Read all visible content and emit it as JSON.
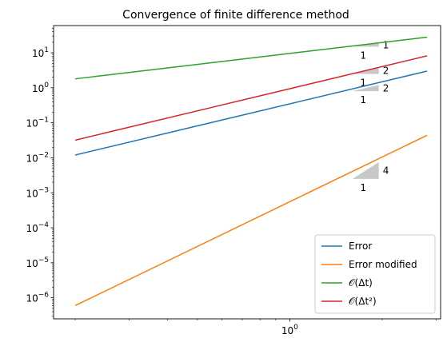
{
  "chart_data": {
    "type": "line",
    "title": "Convergence of finite difference method",
    "xscale": "log",
    "yscale": "log",
    "xlim": [
      0.17,
      3.1
    ],
    "ylim": [
      2.5e-07,
      60
    ],
    "grid": false,
    "legend_position": "lower-right",
    "x_ticks": [
      {
        "value": 1,
        "base": "10",
        "exp": "0"
      }
    ],
    "y_ticks": [
      {
        "value": 1e-06,
        "base": "10",
        "exp": "−6"
      },
      {
        "value": 1e-05,
        "base": "10",
        "exp": "−5"
      },
      {
        "value": 0.0001,
        "base": "10",
        "exp": "−4"
      },
      {
        "value": 0.001,
        "base": "10",
        "exp": "−3"
      },
      {
        "value": 0.01,
        "base": "10",
        "exp": "−2"
      },
      {
        "value": 0.1,
        "base": "10",
        "exp": "−1"
      },
      {
        "value": 1,
        "base": "10",
        "exp": "0"
      },
      {
        "value": 10,
        "base": "10",
        "exp": "1"
      }
    ],
    "series": [
      {
        "name": "Error",
        "color": "#1f77b4",
        "x": [
          0.2,
          2.8
        ],
        "y": [
          0.012,
          3.0
        ]
      },
      {
        "name": "Error modified",
        "color": "#ff7f0e",
        "x": [
          0.2,
          2.8
        ],
        "y": [
          6e-07,
          0.044
        ]
      },
      {
        "name": "𝒪(Δt)",
        "color": "#2ca02c",
        "x": [
          0.2,
          2.8
        ],
        "y": [
          1.8,
          28
        ]
      },
      {
        "name": "𝒪(Δt²)",
        "color": "#d62728",
        "x": [
          0.2,
          2.8
        ],
        "y": [
          0.032,
          8.2
        ]
      }
    ],
    "slope_triangles": [
      {
        "x0": 1.6,
        "x1": 1.95,
        "y_lo": 15,
        "y_hi": 18.5,
        "run": "1",
        "rise": "1"
      },
      {
        "x0": 1.6,
        "x1": 1.95,
        "y_lo": 2.5,
        "y_hi": 3.7,
        "run": "1",
        "rise": "2"
      },
      {
        "x0": 1.6,
        "x1": 1.95,
        "y_lo": 0.8,
        "y_hi": 1.2,
        "run": "1",
        "rise": "2"
      },
      {
        "x0": 1.6,
        "x1": 1.95,
        "y_lo": 0.0025,
        "y_hi": 0.0075,
        "run": "1",
        "rise": "4"
      }
    ]
  }
}
